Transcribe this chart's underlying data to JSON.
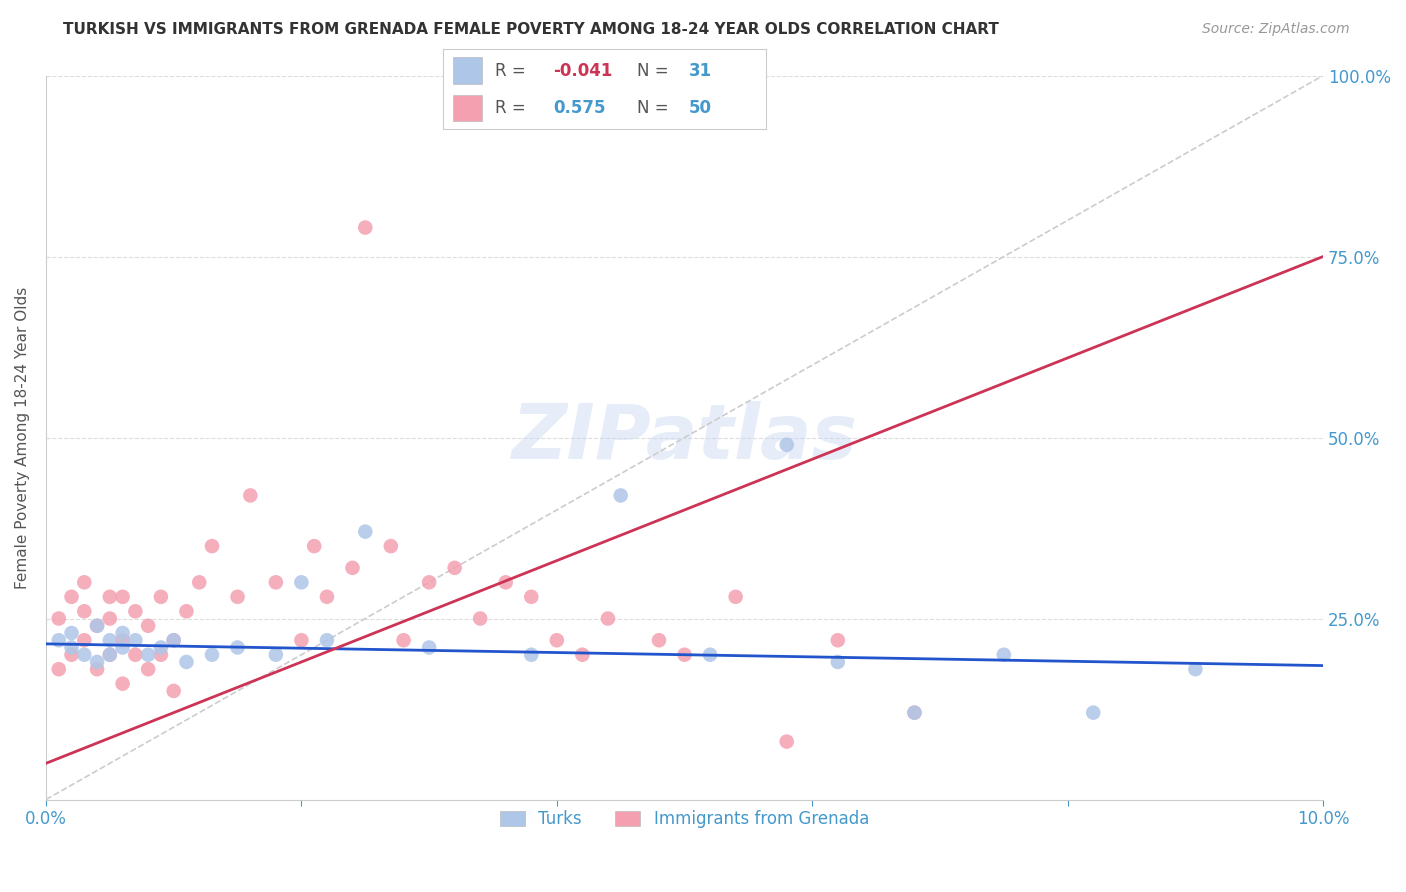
{
  "title": "TURKISH VS IMMIGRANTS FROM GRENADA FEMALE POVERTY AMONG 18-24 YEAR OLDS CORRELATION CHART",
  "source": "Source: ZipAtlas.com",
  "ylabel": "Female Poverty Among 18-24 Year Olds",
  "xlim": [
    0.0,
    0.1
  ],
  "ylim": [
    0.0,
    1.0
  ],
  "xticks": [
    0.0,
    0.02,
    0.04,
    0.06,
    0.08,
    0.1
  ],
  "yticks": [
    0.0,
    0.25,
    0.5,
    0.75,
    1.0
  ],
  "xtick_labels": [
    "0.0%",
    "",
    "",
    "",
    "",
    "10.0%"
  ],
  "ytick_labels": [
    "",
    "25.0%",
    "50.0%",
    "75.0%",
    "100.0%"
  ],
  "turks_R": -0.041,
  "turks_N": 31,
  "grenada_R": 0.575,
  "grenada_N": 50,
  "turks_color": "#aec6e8",
  "grenada_color": "#f4a0b0",
  "turks_line_color": "#2255cc",
  "grenada_line_color": "#cc3355",
  "diagonal_color": "#cccccc",
  "background_color": "#ffffff",
  "turks_x": [
    0.001,
    0.002,
    0.002,
    0.003,
    0.004,
    0.004,
    0.005,
    0.005,
    0.006,
    0.006,
    0.007,
    0.008,
    0.009,
    0.01,
    0.011,
    0.013,
    0.015,
    0.018,
    0.02,
    0.022,
    0.025,
    0.03,
    0.038,
    0.045,
    0.052,
    0.058,
    0.062,
    0.068,
    0.075,
    0.082,
    0.09
  ],
  "turks_y": [
    0.22,
    0.21,
    0.23,
    0.2,
    0.24,
    0.19,
    0.22,
    0.2,
    0.21,
    0.23,
    0.22,
    0.2,
    0.21,
    0.22,
    0.19,
    0.2,
    0.21,
    0.2,
    0.3,
    0.22,
    0.37,
    0.21,
    0.2,
    0.42,
    0.2,
    0.49,
    0.19,
    0.12,
    0.2,
    0.12,
    0.18
  ],
  "grenada_x": [
    0.001,
    0.001,
    0.002,
    0.002,
    0.003,
    0.003,
    0.003,
    0.004,
    0.004,
    0.005,
    0.005,
    0.005,
    0.006,
    0.006,
    0.006,
    0.007,
    0.007,
    0.008,
    0.008,
    0.009,
    0.009,
    0.01,
    0.01,
    0.011,
    0.012,
    0.013,
    0.015,
    0.016,
    0.018,
    0.02,
    0.021,
    0.022,
    0.024,
    0.025,
    0.027,
    0.028,
    0.03,
    0.032,
    0.034,
    0.036,
    0.038,
    0.04,
    0.042,
    0.044,
    0.048,
    0.05,
    0.054,
    0.058,
    0.062,
    0.068
  ],
  "grenada_y": [
    0.18,
    0.25,
    0.2,
    0.28,
    0.22,
    0.26,
    0.3,
    0.18,
    0.24,
    0.2,
    0.25,
    0.28,
    0.16,
    0.22,
    0.28,
    0.2,
    0.26,
    0.18,
    0.24,
    0.2,
    0.28,
    0.15,
    0.22,
    0.26,
    0.3,
    0.35,
    0.28,
    0.42,
    0.3,
    0.22,
    0.35,
    0.28,
    0.32,
    0.79,
    0.35,
    0.22,
    0.3,
    0.32,
    0.25,
    0.3,
    0.28,
    0.22,
    0.2,
    0.25,
    0.22,
    0.2,
    0.28,
    0.08,
    0.22,
    0.12
  ],
  "turks_line_y0": 0.215,
  "turks_line_y1": 0.185,
  "grenada_line_y0": 0.05,
  "grenada_line_y1": 0.75
}
